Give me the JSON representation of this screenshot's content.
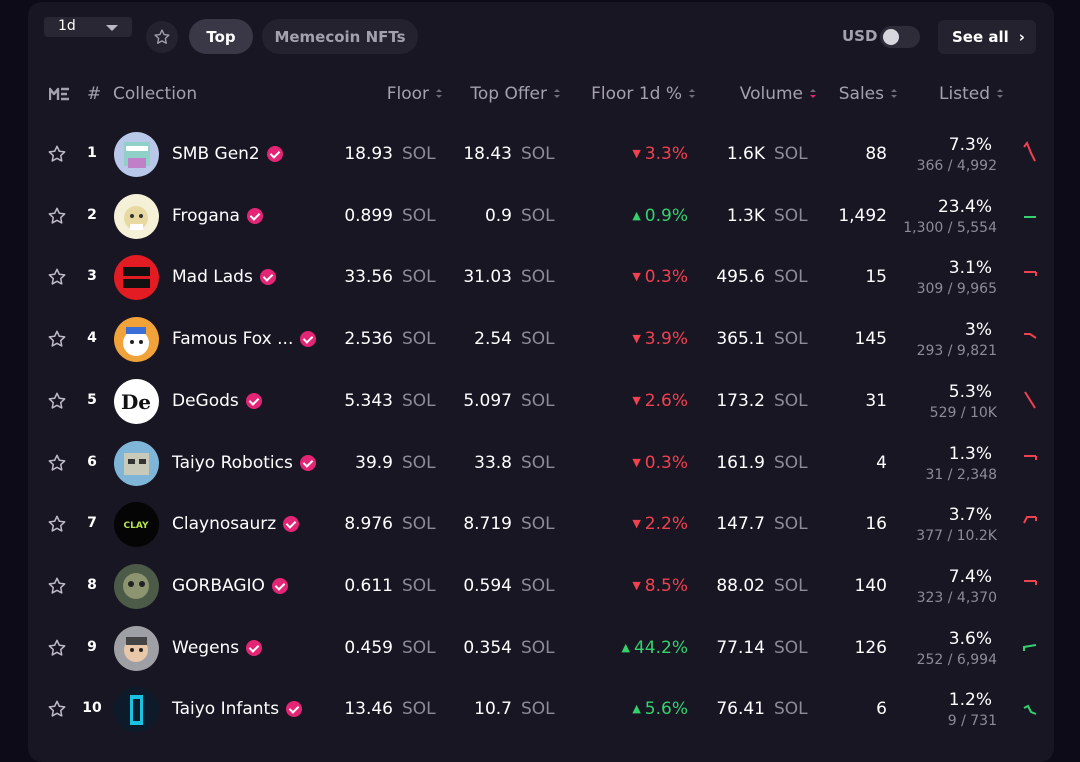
{
  "controls": {
    "period": "1d",
    "tabs": [
      "Top",
      "Memecoin NFTs"
    ],
    "currency_label": "USD",
    "see_all": "See all"
  },
  "colors": {
    "accent": "#e42575",
    "up": "#34d26e",
    "down": "#f0414f",
    "background": "#191624"
  },
  "table": {
    "columns": {
      "rank": "#",
      "collection": "Collection",
      "floor": "Floor",
      "top_offer": "Top Offer",
      "floor_change": "Floor 1d %",
      "volume": "Volume",
      "sales": "Sales",
      "listed": "Listed"
    },
    "unit": "SOL",
    "rows": [
      {
        "rank": "1",
        "name": "SMB Gen2",
        "floor": "18.93",
        "top_offer": "18.43",
        "change": "3.3%",
        "direction": "down",
        "volume": "1.6K",
        "sales": "88",
        "listed_pct": "7.3%",
        "listed_count": "366 / 4,992"
      },
      {
        "rank": "2",
        "name": "Frogana",
        "floor": "0.899",
        "top_offer": "0.9",
        "change": "0.9%",
        "direction": "up",
        "volume": "1.3K",
        "sales": "1,492",
        "listed_pct": "23.4%",
        "listed_count": "1,300 / 5,554"
      },
      {
        "rank": "3",
        "name": "Mad Lads",
        "floor": "33.56",
        "top_offer": "31.03",
        "change": "0.3%",
        "direction": "down",
        "volume": "495.6",
        "sales": "15",
        "listed_pct": "3.1%",
        "listed_count": "309 / 9,965"
      },
      {
        "rank": "4",
        "name": "Famous Fox ...",
        "floor": "2.536",
        "top_offer": "2.54",
        "change": "3.9%",
        "direction": "down",
        "volume": "365.1",
        "sales": "145",
        "listed_pct": "3%",
        "listed_count": "293 / 9,821"
      },
      {
        "rank": "5",
        "name": "DeGods",
        "floor": "5.343",
        "top_offer": "5.097",
        "change": "2.6%",
        "direction": "down",
        "volume": "173.2",
        "sales": "31",
        "listed_pct": "5.3%",
        "listed_count": "529 / 10K"
      },
      {
        "rank": "6",
        "name": "Taiyo Robotics",
        "floor": "39.9",
        "top_offer": "33.8",
        "change": "0.3%",
        "direction": "down",
        "volume": "161.9",
        "sales": "4",
        "listed_pct": "1.3%",
        "listed_count": "31 / 2,348"
      },
      {
        "rank": "7",
        "name": "Claynosaurz",
        "floor": "8.976",
        "top_offer": "8.719",
        "change": "2.2%",
        "direction": "down",
        "volume": "147.7",
        "sales": "16",
        "listed_pct": "3.7%",
        "listed_count": "377 / 10.2K"
      },
      {
        "rank": "8",
        "name": "GORBAGIO",
        "floor": "0.611",
        "top_offer": "0.594",
        "change": "8.5%",
        "direction": "down",
        "volume": "88.02",
        "sales": "140",
        "listed_pct": "7.4%",
        "listed_count": "323 / 4,370"
      },
      {
        "rank": "9",
        "name": "Wegens",
        "floor": "0.459",
        "top_offer": "0.354",
        "change": "44.2%",
        "direction": "up",
        "volume": "77.14",
        "sales": "126",
        "listed_pct": "3.6%",
        "listed_count": "252 / 6,994"
      },
      {
        "rank": "10",
        "name": "Taiyo Infants",
        "floor": "13.46",
        "top_offer": "10.7",
        "change": "5.6%",
        "direction": "up",
        "volume": "76.41",
        "sales": "6",
        "listed_pct": "1.2%",
        "listed_count": "9 / 731"
      }
    ]
  }
}
